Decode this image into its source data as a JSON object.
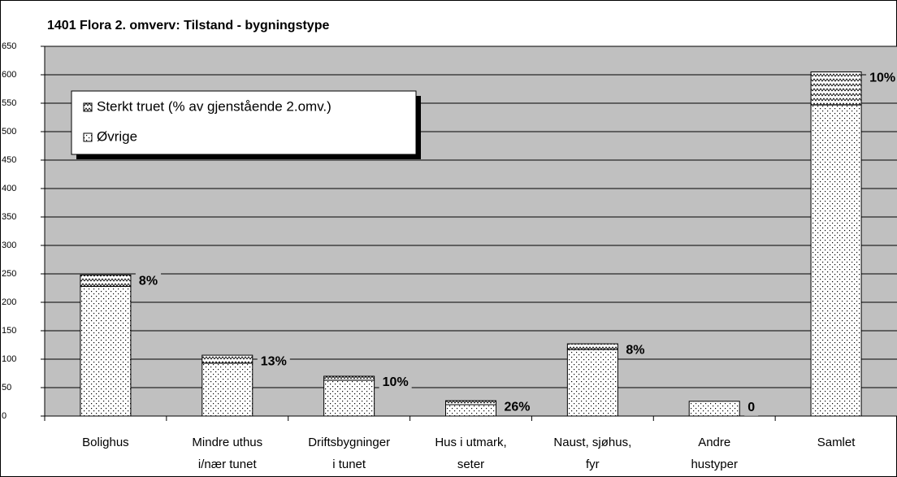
{
  "chart_data": {
    "type": "stacked_bar",
    "title": "1401 Flora 2. omverv: Tilstand - bygningstype",
    "categories": [
      [
        "Bolighus"
      ],
      [
        "Mindre uthus",
        "i/nær tunet"
      ],
      [
        "Driftsbygninger",
        "i tunet"
      ],
      [
        "Hus i utmark,",
        "seter"
      ],
      [
        "Naust, sjøhus,",
        "fyr"
      ],
      [
        "Andre",
        "hustyper"
      ],
      [
        "Samlet"
      ]
    ],
    "series": [
      {
        "name": "Øvrige",
        "color": "#ffffff",
        "pattern": "dots",
        "values": [
          228,
          93,
          63,
          20,
          117,
          26,
          547
        ]
      },
      {
        "name": "Sterkt truet (% av gjenstående 2.omv.)",
        "color": "#ffffff",
        "pattern": "zigzag",
        "values": [
          20,
          14,
          7,
          7,
          10,
          0,
          58
        ]
      }
    ],
    "annotations": [
      "8%",
      "13%",
      "10%",
      "26%",
      "8%",
      "0",
      "10%"
    ],
    "ylim": [
      0,
      650
    ],
    "yticks": [
      0,
      50,
      100,
      150,
      200,
      250,
      300,
      350,
      400,
      450,
      500,
      550,
      600,
      650
    ],
    "grid": true,
    "legend": "top-left"
  }
}
